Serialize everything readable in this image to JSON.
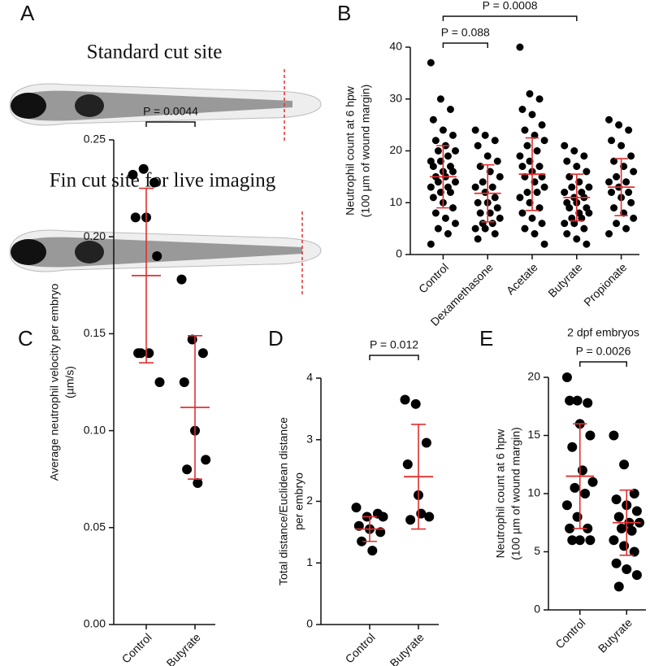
{
  "panel_labels": [
    "A",
    "B",
    "C",
    "D",
    "E"
  ],
  "panel_a": {
    "captions": [
      "Standard cut site",
      "Fin cut site for live imaging"
    ]
  },
  "chart_data": [
    {
      "type": "dot-plot",
      "ylabel": [
        "Neutrophil count at 6 hpw",
        "(100 µm of wound margin)"
      ],
      "categories": [
        "Control",
        "Dexamethasone",
        "Acetate",
        "Butyrate",
        "Propionate"
      ],
      "point_color": "#000000",
      "summary_color": "#e0302f",
      "ylim": [
        0,
        40
      ],
      "yticks": [
        0,
        10,
        20,
        30,
        40
      ],
      "points": [
        [
          37,
          30,
          28,
          26,
          24,
          23,
          22,
          21,
          20,
          20,
          19,
          18,
          18,
          17,
          17,
          16,
          16,
          15,
          15,
          14,
          14,
          13,
          13,
          12,
          12,
          11,
          10,
          9,
          8,
          7,
          6,
          5,
          4,
          2
        ],
        [
          24,
          23,
          22,
          21,
          19,
          18,
          17,
          16,
          15,
          14,
          13,
          13,
          12,
          11,
          10,
          10,
          9,
          8,
          8,
          7,
          6,
          6,
          5,
          5,
          4,
          3
        ],
        [
          40,
          31,
          30,
          28,
          27,
          25,
          24,
          23,
          22,
          21,
          20,
          19,
          18,
          17,
          17,
          16,
          15,
          15,
          14,
          13,
          12,
          12,
          11,
          10,
          9,
          8,
          7,
          6,
          5,
          4,
          2
        ],
        [
          21,
          20,
          19,
          18,
          17,
          16,
          15,
          14,
          13,
          13,
          12,
          12,
          11,
          11,
          10,
          10,
          9,
          9,
          8,
          8,
          7,
          7,
          6,
          6,
          5,
          4,
          3,
          2
        ],
        [
          26,
          25,
          24,
          22,
          21,
          19,
          18,
          17,
          16,
          15,
          14,
          14,
          13,
          12,
          12,
          11,
          10,
          9,
          8,
          7,
          6,
          5,
          4
        ]
      ],
      "mean": [
        15,
        11.8,
        15.5,
        11,
        13
      ],
      "sd": [
        6,
        5.5,
        7,
        4.5,
        5.5
      ],
      "comparisons": [
        {
          "label": "P = 0.088",
          "between": [
            "Control",
            "Dexamethasone"
          ]
        },
        {
          "label": "P = 0.0008",
          "between": [
            "Control",
            "Butyrate"
          ]
        }
      ]
    },
    {
      "type": "dot-plot",
      "ylabel": [
        "Average neutrophil velocity per embryo",
        "(µm/s)"
      ],
      "categories": [
        "Control",
        "Butyrate"
      ],
      "point_color": "#000000",
      "summary_color": "#e0302f",
      "ylim": [
        0,
        0.25
      ],
      "yticks": [
        {
          "value": 0,
          "label": "0.00"
        },
        {
          "value": 0.05,
          "label": "0.05"
        },
        {
          "value": 0.1,
          "label": "0.10"
        },
        {
          "value": 0.15,
          "label": "0.15"
        },
        {
          "value": 0.2,
          "label": "0.20"
        },
        {
          "value": 0.25,
          "label": "0.25"
        }
      ],
      "points": [
        [
          0.232,
          0.235,
          0.228,
          0.21,
          0.21,
          0.19,
          0.14,
          0.14,
          0.125,
          0.14
        ],
        [
          0.178,
          0.147,
          0.14,
          0.125,
          0.1,
          0.085,
          0.08,
          0.073
        ]
      ],
      "mean": [
        0.18,
        0.112
      ],
      "sd": [
        0.045,
        0.037
      ],
      "comparisons": [
        {
          "label": "P = 0.0044",
          "between": [
            "Control",
            "Butyrate"
          ]
        }
      ]
    },
    {
      "type": "dot-plot",
      "ylabel": [
        "Total distance/Euclidean distance",
        "per embryo"
      ],
      "categories": [
        "Control",
        "Butyrate"
      ],
      "point_color": "#000000",
      "summary_color": "#e0302f",
      "ylim": [
        0,
        4
      ],
      "yticks": [
        0,
        1,
        2,
        3,
        4
      ],
      "points": [
        [
          1.9,
          1.75,
          1.8,
          1.6,
          1.55,
          1.5,
          1.35,
          1.2,
          1.75
        ],
        [
          3.65,
          3.58,
          2.95,
          2.6,
          2.1,
          1.75,
          1.7,
          1.8
        ]
      ],
      "mean": [
        1.55,
        2.4
      ],
      "sd": [
        0.2,
        0.85
      ],
      "comparisons": [
        {
          "label": "P = 0.012",
          "between": [
            "Control",
            "Butyrate"
          ]
        }
      ]
    },
    {
      "type": "dot-plot",
      "subtitle": "2 dpf embryos",
      "ylabel": [
        "Neutrophil count at 6 hpw",
        "(100 µm of wound margin)"
      ],
      "categories": [
        "Control",
        "Butyrate"
      ],
      "point_color": "#000000",
      "summary_color": "#e0302f",
      "ylim": [
        0,
        20
      ],
      "yticks": [
        0,
        5,
        10,
        15,
        20
      ],
      "points": [
        [
          20,
          18,
          17.8,
          18,
          16,
          15,
          14,
          12,
          11,
          10.5,
          10,
          9,
          8,
          7,
          7,
          6,
          6,
          6
        ],
        [
          15,
          12.5,
          10,
          9.5,
          9,
          8.5,
          8,
          7.5,
          7.5,
          7,
          6.8,
          6,
          5.5,
          5,
          4,
          3.5,
          3,
          2
        ]
      ],
      "mean": [
        11.5,
        7.5
      ],
      "sd": [
        4.5,
        2.8
      ],
      "comparisons": [
        {
          "label": "P = 0.0026",
          "between": [
            "Control",
            "Butyrate"
          ]
        }
      ]
    }
  ]
}
